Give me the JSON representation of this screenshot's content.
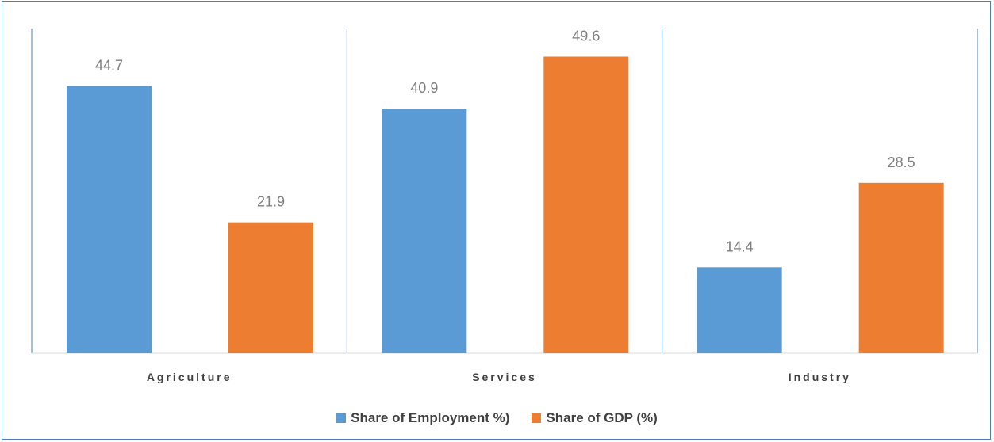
{
  "chart_data": {
    "type": "bar",
    "categories": [
      "Agriculture",
      "Services",
      "Industry"
    ],
    "series": [
      {
        "name": "Share of Employment %)",
        "values": [
          44.7,
          40.9,
          14.4
        ],
        "color": "#5b9bd5"
      },
      {
        "name": "Share of GDP (%)",
        "values": [
          21.9,
          49.6,
          28.5
        ],
        "color": "#ed7d31"
      }
    ],
    "title": "",
    "xlabel": "",
    "ylabel": "",
    "ylim": [
      0,
      60
    ],
    "grid": false,
    "legend_position": "bottom",
    "data_labels": [
      "44.7",
      "21.9",
      "40.9",
      "49.6",
      "14.4",
      "28.5"
    ]
  }
}
